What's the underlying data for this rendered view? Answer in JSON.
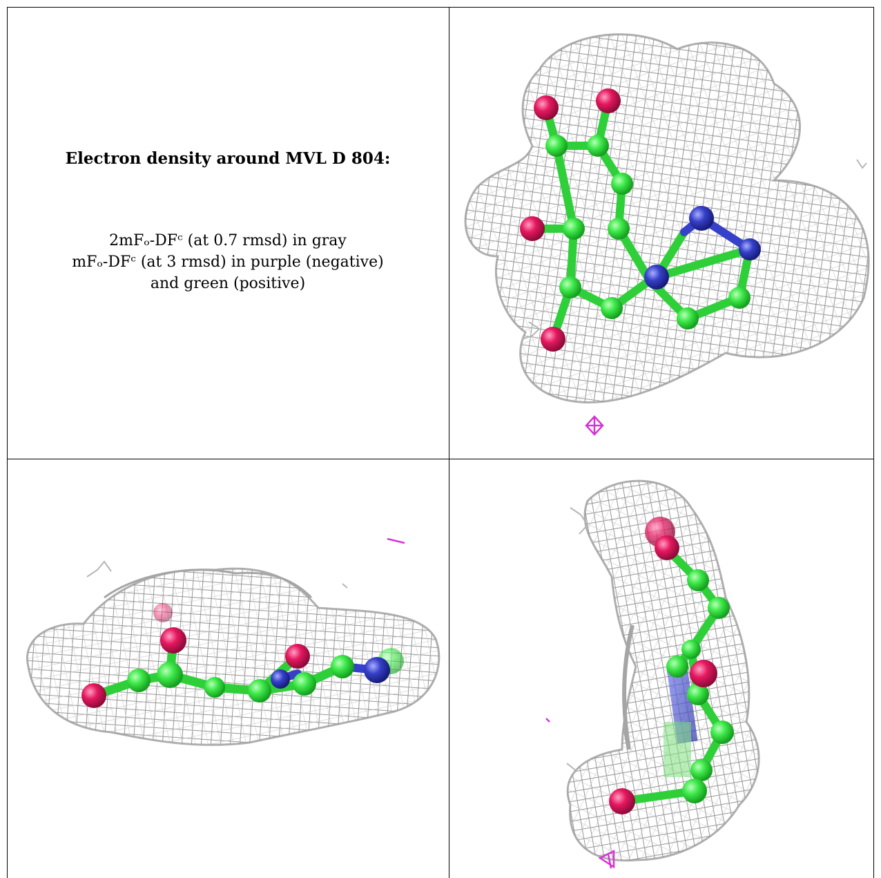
{
  "caption": {
    "title": "Electron density around MVL D 804:",
    "line1": "2mFₒ-DFᶜ (at 0.7 rmsd) in gray",
    "line2": "mFₒ-DFᶜ (at 3 rmsd) in purple (negative)",
    "line3": "and green (positive)"
  },
  "colors": {
    "mesh": "#9a9a9a",
    "carbon": "#3ee84a",
    "oxygen": "#e5185f",
    "nitrogen": "#3640c8",
    "negative_density": "#d633d6"
  },
  "icons": [
    "mesh-blob",
    "ball-and-stick-molecule",
    "density-blob"
  ]
}
